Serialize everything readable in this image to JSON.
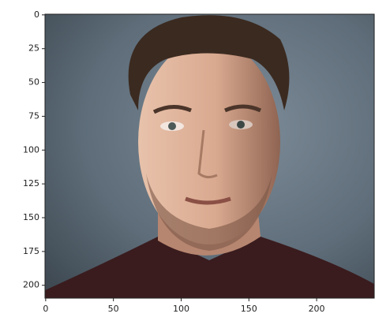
{
  "chart_data": {
    "type": "image",
    "xlim": [
      -0.5,
      242.5
    ],
    "ylim": [
      209.5,
      -0.5
    ],
    "xticks": [
      0,
      50,
      100,
      150,
      200
    ],
    "yticks": [
      0,
      25,
      50,
      75,
      100,
      125,
      150,
      175,
      200
    ]
  }
}
